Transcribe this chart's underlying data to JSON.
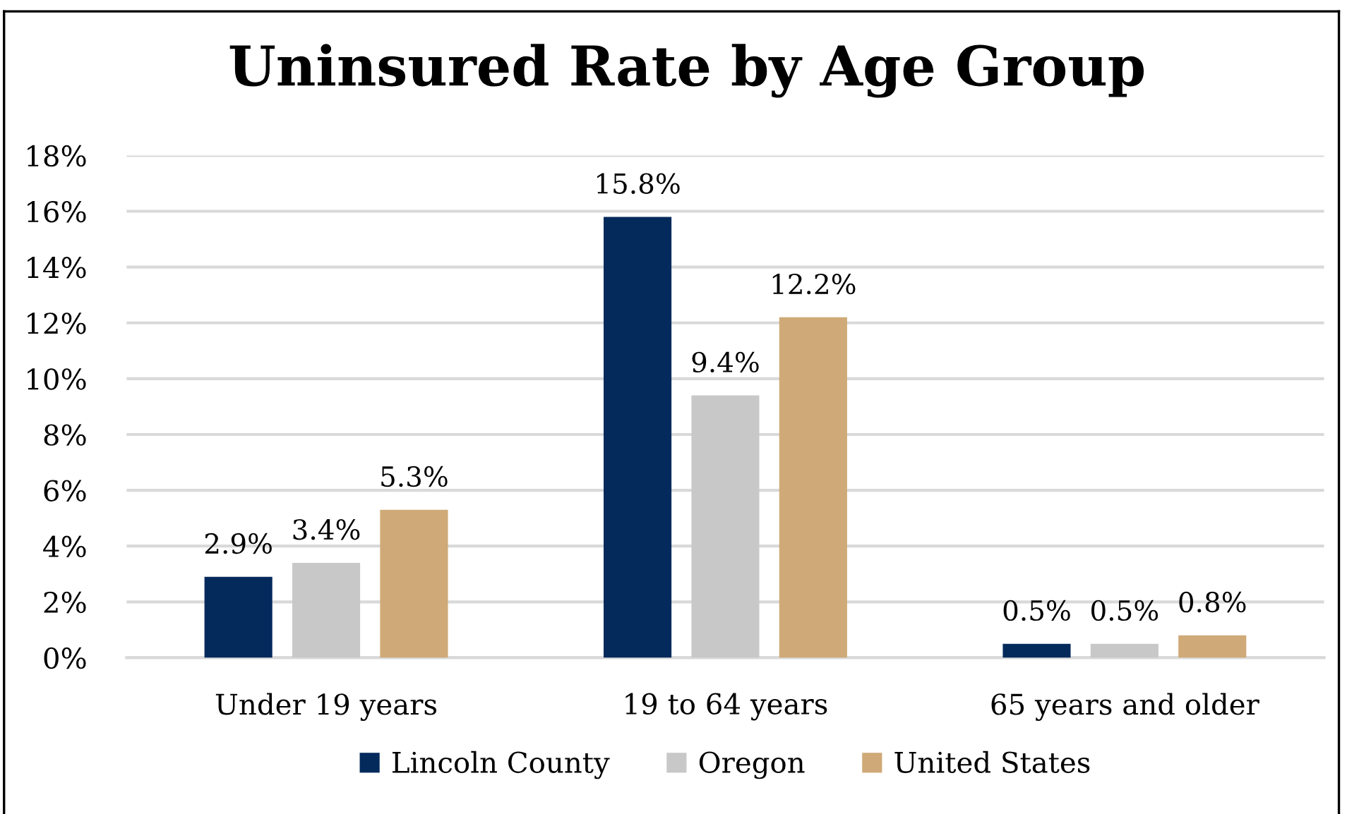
{
  "chart_data": {
    "type": "bar",
    "title": "Uninsured Rate by Age Group",
    "categories": [
      "Under 19 years",
      "19 to 64 years",
      "65 years and older"
    ],
    "series": [
      {
        "name": "Lincoln County",
        "color": "#042a5c",
        "values": [
          2.9,
          15.8,
          0.5
        ],
        "value_labels": [
          "2.9%",
          "15.8%",
          "0.5%"
        ]
      },
      {
        "name": "Oregon",
        "color": "#c8c8c8",
        "values": [
          3.4,
          9.4,
          0.5
        ],
        "value_labels": [
          "3.4%",
          "9.4%",
          "0.5%"
        ]
      },
      {
        "name": "United States",
        "color": "#cfa977",
        "values": [
          5.3,
          12.2,
          0.8
        ],
        "value_labels": [
          "5.3%",
          "12.2%",
          "0.8%"
        ]
      }
    ],
    "ylim": [
      0,
      18
    ],
    "yticks": [
      {
        "value": 0,
        "label": "0%"
      },
      {
        "value": 2,
        "label": "2%"
      },
      {
        "value": 4,
        "label": "4%"
      },
      {
        "value": 6,
        "label": "6%"
      },
      {
        "value": 8,
        "label": "8%"
      },
      {
        "value": 10,
        "label": "10%"
      },
      {
        "value": 12,
        "label": "12%"
      },
      {
        "value": 14,
        "label": "14%"
      },
      {
        "value": 16,
        "label": "16%"
      },
      {
        "value": 18,
        "label": "18%"
      }
    ],
    "grid": "y",
    "legend": "bottom"
  }
}
